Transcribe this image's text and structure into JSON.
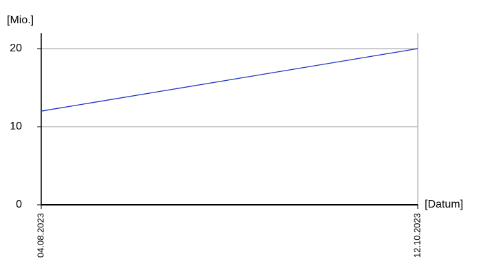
{
  "chart_data": {
    "type": "line",
    "y_label": "[Mio.]",
    "x_label": "[Datum]",
    "categories": [
      "04.08.2023",
      "12.10.2023"
    ],
    "values": [
      12,
      20
    ],
    "color": "#1f2fc8",
    "ylim": [
      0,
      22
    ],
    "yticks": [
      0,
      10,
      20
    ],
    "grid": true
  }
}
